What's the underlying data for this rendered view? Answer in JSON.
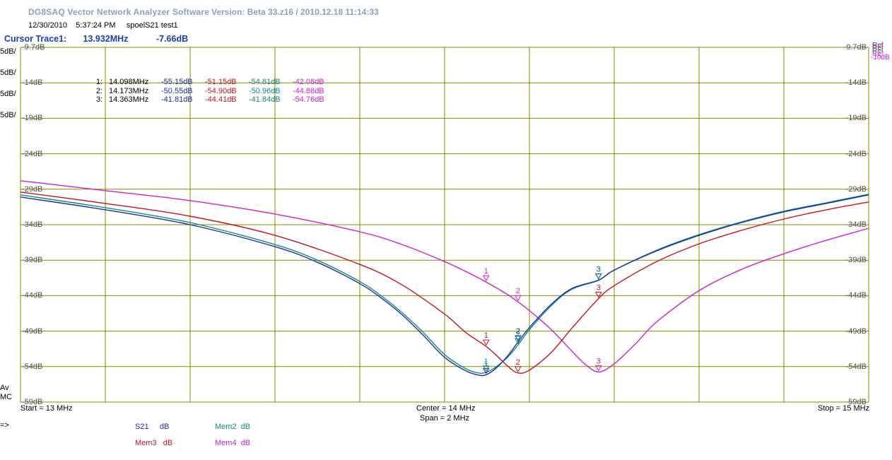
{
  "app": {
    "title": "DG8SAQ Vector Network Analyzer Software",
    "version": "Version:   Beta 33.z16 / 2010.12.18 11:14:33"
  },
  "header": {
    "date": "12/30/2010",
    "time": "5:37:24 PM",
    "file": "spoelS21 test1"
  },
  "cursor": {
    "label": "Cursor Trace1:",
    "freq": "13.932MHz",
    "value": "-7.66dB"
  },
  "scale_labels": [
    {
      "text": "5dB/",
      "color": "#1a2ea8"
    },
    {
      "text": "5dB/",
      "color": "#c8141e"
    },
    {
      "text": "5dB/",
      "color": "#138a80"
    },
    {
      "text": "5dB/",
      "color": "#d21ed2"
    }
  ],
  "right_ref_labels": [
    "Ref",
    "Ref",
    "Ref",
    "Ref",
    "-10dB"
  ],
  "av_mc": [
    "Av",
    "MC"
  ],
  "marker_table": {
    "rows": [
      {
        "idx": "1:",
        "freq": "14.098MHz",
        "v": [
          "-55.15dB",
          "-51.15dB",
          "-54.81dB",
          "-42.08dB"
        ]
      },
      {
        "idx": "2:",
        "freq": "14.173MHz",
        "v": [
          "-50.55dB",
          "-54.90dB",
          "-50.96dB",
          "-44.88dB"
        ]
      },
      {
        "idx": "3:",
        "freq": "14.363MHz",
        "v": [
          "-41.81dB",
          "-44.41dB",
          "-41.84dB",
          "-54.76dB"
        ]
      }
    ],
    "colors": [
      "#1a2ea8",
      "#c8141e",
      "#138a80",
      "#d21ed2"
    ]
  },
  "footer": {
    "start": "Start = 13 MHz",
    "center": "Center = 14 MHz",
    "span": "Span = 2 MHz",
    "stop": "Stop = 15 MHz",
    "arrow": "=>"
  },
  "legend": [
    {
      "name": "S21",
      "unit": "dB",
      "color": "#1a2ea8"
    },
    {
      "name": "Mem2",
      "unit": "dB",
      "color": "#138a80"
    },
    {
      "name": "Mem3",
      "unit": "dB",
      "color": "#c8141e"
    },
    {
      "name": "Mem4",
      "unit": "dB",
      "color": "#d21ed2"
    }
  ],
  "chart_data": {
    "type": "line",
    "title": "",
    "xlabel": "",
    "ylabel": "",
    "xlim": [
      13,
      15
    ],
    "ylim": [
      -59,
      -9.7
    ],
    "x_unit": "MHz",
    "y_ticks": [
      "-9.7dB",
      "-14dB",
      "-19dB",
      "-24dB",
      "-29dB",
      "-34dB",
      "-39dB",
      "-44dB",
      "-49dB",
      "-54dB",
      "-59dB"
    ],
    "y_tick_values": [
      -9.7,
      -14,
      -19,
      -24,
      -29,
      -34,
      -39,
      -44,
      -49,
      -54,
      -59
    ],
    "x_gridlines": 10,
    "grid": true,
    "series": [
      {
        "name": "S21",
        "color": "#1a2ea8",
        "x": [
          13.0,
          13.2,
          13.4,
          13.6,
          13.7,
          13.8,
          13.85,
          13.9,
          13.95,
          14.0,
          14.05,
          14.08,
          14.098,
          14.12,
          14.15,
          14.173,
          14.2,
          14.25,
          14.3,
          14.363,
          14.4,
          14.5,
          14.6,
          14.7,
          14.8,
          14.9,
          15.0
        ],
        "y": [
          -30.1,
          -31.9,
          -34.0,
          -37.1,
          -39.3,
          -42.3,
          -44.3,
          -46.7,
          -49.6,
          -52.7,
          -54.6,
          -55.2,
          -55.15,
          -54.3,
          -52.4,
          -50.55,
          -48.5,
          -45.3,
          -43.0,
          -41.81,
          -40.4,
          -37.7,
          -35.5,
          -33.7,
          -32.2,
          -31.0,
          -29.8
        ]
      },
      {
        "name": "Mem2",
        "color": "#138a80",
        "x": [
          13.0,
          13.2,
          13.4,
          13.6,
          13.7,
          13.8,
          13.85,
          13.9,
          13.95,
          14.0,
          14.05,
          14.08,
          14.098,
          14.12,
          14.15,
          14.173,
          14.2,
          14.25,
          14.3,
          14.363,
          14.4,
          14.5,
          14.6,
          14.7,
          14.8,
          14.9,
          15.0
        ],
        "y": [
          -29.8,
          -31.6,
          -33.7,
          -36.8,
          -39.0,
          -42.0,
          -44.0,
          -46.4,
          -49.2,
          -52.3,
          -54.3,
          -54.9,
          -54.81,
          -54.1,
          -52.6,
          -50.96,
          -48.8,
          -45.5,
          -43.1,
          -41.84,
          -40.4,
          -37.6,
          -35.4,
          -33.6,
          -32.1,
          -30.9,
          -29.7
        ]
      },
      {
        "name": "Mem3",
        "color": "#c8141e",
        "x": [
          13.0,
          13.2,
          13.4,
          13.6,
          13.8,
          13.9,
          14.0,
          14.05,
          14.098,
          14.12,
          14.15,
          14.173,
          14.2,
          14.25,
          14.3,
          14.363,
          14.4,
          14.5,
          14.6,
          14.7,
          14.8,
          14.9,
          15.0
        ],
        "y": [
          -29.4,
          -31.0,
          -32.8,
          -35.5,
          -39.6,
          -42.5,
          -46.6,
          -49.2,
          -51.15,
          -52.3,
          -54.0,
          -54.9,
          -54.5,
          -52.1,
          -48.6,
          -44.41,
          -42.6,
          -39.2,
          -36.7,
          -34.8,
          -33.2,
          -31.9,
          -30.8
        ]
      },
      {
        "name": "Mem4",
        "color": "#d21ed2",
        "x": [
          13.0,
          13.2,
          13.4,
          13.6,
          13.8,
          13.9,
          14.0,
          14.05,
          14.098,
          14.15,
          14.173,
          14.2,
          14.25,
          14.3,
          14.33,
          14.363,
          14.4,
          14.45,
          14.5,
          14.6,
          14.7,
          14.8,
          14.9,
          15.0
        ],
        "y": [
          -27.8,
          -29.2,
          -30.6,
          -32.5,
          -35.0,
          -36.8,
          -39.2,
          -40.6,
          -42.08,
          -43.9,
          -44.88,
          -46.1,
          -48.7,
          -51.8,
          -53.6,
          -54.76,
          -53.6,
          -50.8,
          -47.7,
          -43.3,
          -40.3,
          -38.1,
          -36.2,
          -34.5
        ]
      }
    ],
    "markers": [
      {
        "label": "1",
        "x": 14.098,
        "values": [
          -55.15,
          -51.15,
          -54.81,
          -42.08
        ]
      },
      {
        "label": "2",
        "x": 14.173,
        "values": [
          -50.55,
          -54.9,
          -50.96,
          -44.88
        ]
      },
      {
        "label": "3",
        "x": 14.363,
        "values": [
          -41.81,
          -44.41,
          -41.84,
          -54.76
        ]
      }
    ]
  }
}
